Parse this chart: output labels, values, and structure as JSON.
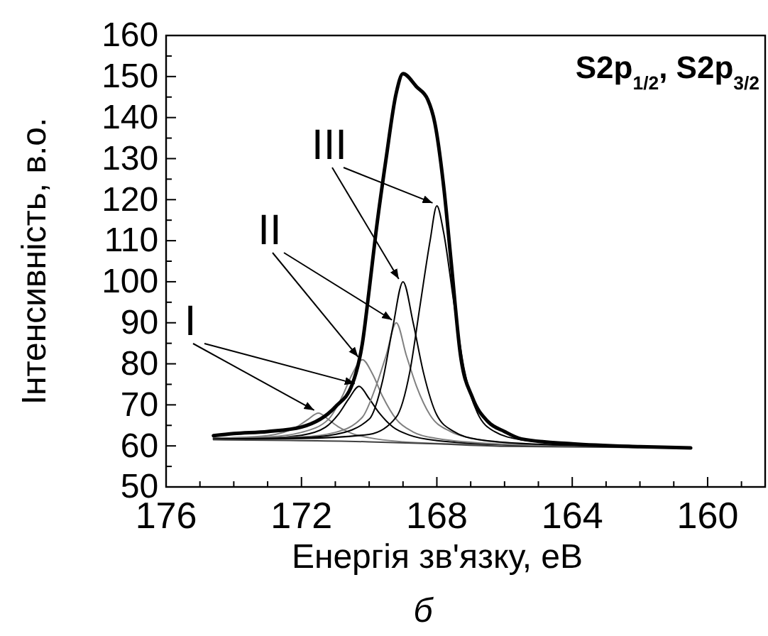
{
  "chart_data": {
    "type": "line",
    "title": "S2p$_{1/2}$, S2p$_{3/2}$",
    "xlabel": "Енергія зв'язку, еВ",
    "ylabel": "Інтенсивність, в.о.",
    "xlim": [
      176,
      158.3
    ],
    "ylim": [
      50,
      160
    ],
    "xticks": [
      176,
      {
        "value": 175,
        "label": null
      },
      {
        "value": 174,
        "label": null
      },
      {
        "value": 173,
        "label": null
      },
      172,
      {
        "value": 171,
        "label": null
      },
      {
        "value": 170,
        "label": null
      },
      {
        "value": 169,
        "label": null
      },
      168,
      {
        "value": 167,
        "label": null
      },
      {
        "value": 166,
        "label": null
      },
      {
        "value": 165,
        "label": null
      },
      164,
      {
        "value": 163,
        "label": null
      },
      {
        "value": 162,
        "label": null
      },
      {
        "value": 161,
        "label": null
      },
      160,
      {
        "value": 159,
        "label": null
      }
    ],
    "yticks": [
      50,
      {
        "value": 55,
        "label": null
      },
      60,
      {
        "value": 65,
        "label": null
      },
      70,
      {
        "value": 75,
        "label": null
      },
      80,
      {
        "value": 85,
        "label": null
      },
      90,
      {
        "value": 95,
        "label": null
      },
      100,
      {
        "value": 105,
        "label": null
      },
      110,
      {
        "value": 115,
        "label": null
      },
      120,
      {
        "value": 125,
        "label": null
      },
      130,
      {
        "value": 135,
        "label": null
      },
      140,
      {
        "value": 145,
        "label": null
      },
      150,
      {
        "value": 155,
        "label": null
      },
      160
    ],
    "grid": false,
    "marker": "none",
    "line_style": "solid",
    "annotations": [
      {
        "text": "I",
        "x": 171.5,
        "y": 68
      },
      {
        "text": "II",
        "x": 170.2,
        "y": 81
      },
      {
        "text": "III",
        "x": 169.0,
        "y": 100
      },
      "б"
    ],
    "series": [
      {
        "color": "#808080",
        "x": [
          174.6,
          174,
          173,
          172.1,
          171.8,
          171.5,
          171.2,
          170.9,
          170.5,
          170,
          169,
          168,
          164,
          160.5
        ],
        "values": [
          61.9,
          62.0,
          62.5,
          64.8,
          66.5,
          68,
          66.4,
          64.6,
          63.0,
          62.0,
          61.0,
          60.6,
          60,
          59.5
        ]
      },
      {
        "color": "#000000",
        "x": [
          174.6,
          173,
          172,
          171.3,
          170.9,
          170.6,
          170.3,
          170.0,
          169.7,
          169.3,
          168.8,
          168,
          166,
          164,
          160.5
        ],
        "values": [
          61.9,
          62.0,
          62.6,
          64.5,
          67.8,
          71.5,
          74.5,
          71.5,
          68,
          64.6,
          62.6,
          61.3,
          60.3,
          60,
          59.5
        ]
      },
      {
        "color": "#808080",
        "x": [
          174.6,
          173,
          172,
          171.2,
          170.8,
          170.5,
          170.2,
          169.9,
          169.6,
          169.2,
          168.7,
          168,
          166,
          164,
          160.5
        ],
        "values": [
          61.9,
          62.2,
          63.3,
          66.5,
          72,
          77.5,
          81,
          77.5,
          72,
          66.5,
          63.4,
          61.8,
          60.4,
          60,
          59.5
        ]
      },
      {
        "color": "#808080",
        "x": [
          174.6,
          172,
          171,
          170.2,
          169.8,
          169.5,
          169.2,
          168.9,
          168.6,
          168.2,
          167.6,
          167,
          166,
          164,
          160.5
        ],
        "values": [
          61.8,
          62.2,
          63.3,
          67,
          74.5,
          82,
          90,
          82,
          74.5,
          67.5,
          63.5,
          61.9,
          60.8,
          60.1,
          59.5
        ]
      },
      {
        "color": "#000000",
        "x": [
          174.6,
          172,
          171,
          170,
          169.6,
          169.3,
          169.0,
          168.7,
          168.4,
          168.0,
          167.5,
          166.8,
          165,
          162,
          160.5
        ],
        "values": [
          61.7,
          62.0,
          62.8,
          66.5,
          76,
          89,
          100,
          90,
          78,
          67.5,
          63.5,
          61.6,
          60.4,
          59.8,
          59.5
        ]
      },
      {
        "color": "#000000",
        "x": [
          174.6,
          172,
          170,
          169.2,
          168.8,
          168.5,
          168.2,
          168.0,
          167.8,
          167.5,
          167.2,
          166.8,
          166.3,
          165.5,
          164,
          162,
          160.5
        ],
        "values": [
          61.6,
          61.8,
          62.8,
          67,
          78,
          94,
          110,
          118.5,
          112,
          95,
          79,
          68,
          63.5,
          61.5,
          60.5,
          59.9,
          59.5
        ]
      },
      {
        "color": "#404040",
        "x": [
          174.6,
          170,
          168,
          166,
          160.5
        ],
        "values": [
          61.5,
          61,
          60.5,
          59.9,
          59.5
        ]
      },
      {
        "color": "#000000",
        "x": [
          174.6,
          174,
          173,
          172,
          171,
          170.5,
          170.2,
          170,
          169.8,
          169.5,
          169.2,
          169.0,
          168.6,
          168.27,
          168.06,
          167.79,
          167.58,
          167.3,
          166.95,
          166.5,
          166,
          165.5,
          164,
          162,
          160.5
        ],
        "values": [
          62.5,
          63,
          63.5,
          64.6,
          69.5,
          75,
          85,
          98,
          112,
          130,
          146,
          150.7,
          147.5,
          144.4,
          138.7,
          122.6,
          105,
          82,
          71.8,
          66,
          63.5,
          61.7,
          60.5,
          59.8,
          59.5
        ]
      }
    ]
  }
}
